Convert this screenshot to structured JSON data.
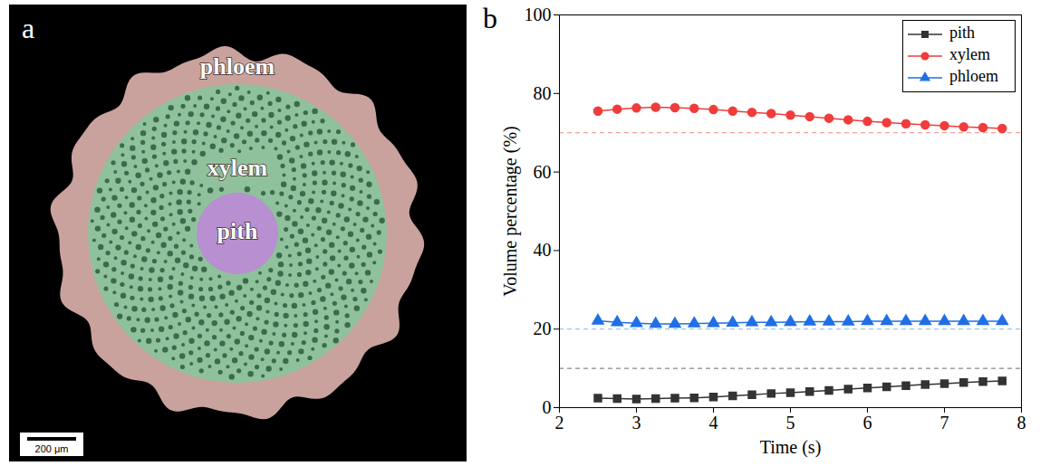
{
  "image_panel": {
    "panel_label": "a",
    "labels": [
      "phloem",
      "xylem",
      "pith"
    ],
    "colors": [
      "#c9a29e",
      "#8fc29c",
      "#b88fd0"
    ],
    "scale_bar": "200 μm"
  },
  "chart_data": {
    "panel_label": "b",
    "type": "line",
    "x_label": "Time (s)",
    "y_label": "Volume percentage (%)",
    "x": [
      2.5,
      2.75,
      3,
      3.25,
      3.5,
      3.75,
      4,
      4.25,
      4.5,
      4.75,
      5,
      5.25,
      5.5,
      5.75,
      6,
      6.25,
      6.5,
      6.75,
      7,
      7.25,
      7.5,
      7.75
    ],
    "xlim": [
      2,
      8
    ],
    "xticks": [
      2,
      3,
      4,
      5,
      6,
      7,
      8
    ],
    "ylim": [
      0,
      100
    ],
    "yticks": [
      0,
      20,
      40,
      60,
      80,
      100
    ],
    "legend": "upper right",
    "series": [
      {
        "name": "pith",
        "color": "#333333",
        "marker": "square",
        "values": [
          2.4,
          2.3,
          2.2,
          2.3,
          2.4,
          2.5,
          2.7,
          3.0,
          3.3,
          3.6,
          3.8,
          4.1,
          4.4,
          4.7,
          5.0,
          5.3,
          5.6,
          5.9,
          6.1,
          6.4,
          6.6,
          6.8
        ]
      },
      {
        "name": "xylem",
        "color": "#f03c3c",
        "marker": "circle",
        "values": [
          75.5,
          76.0,
          76.3,
          76.5,
          76.4,
          76.2,
          75.9,
          75.5,
          75.2,
          74.9,
          74.5,
          74.1,
          73.7,
          73.3,
          72.9,
          72.6,
          72.3,
          72.0,
          71.8,
          71.5,
          71.3,
          71.1
        ]
      },
      {
        "name": "phloem",
        "color": "#1f6fe6",
        "marker": "triangle",
        "values": [
          22.1,
          21.7,
          21.5,
          21.3,
          21.3,
          21.4,
          21.5,
          21.6,
          21.7,
          21.7,
          21.8,
          21.9,
          21.9,
          21.9,
          22.0,
          22.0,
          22.0,
          22.0,
          22.0,
          22.0,
          22.0,
          22.0
        ]
      }
    ],
    "reference_lines": [
      {
        "value": 70,
        "color": "#f5a0a0",
        "line_style": "dashed"
      },
      {
        "value": 20,
        "color": "#9fc5e8",
        "line_style": "dashed"
      },
      {
        "value": 10,
        "color": "#888888",
        "line_style": "dashed"
      }
    ]
  }
}
